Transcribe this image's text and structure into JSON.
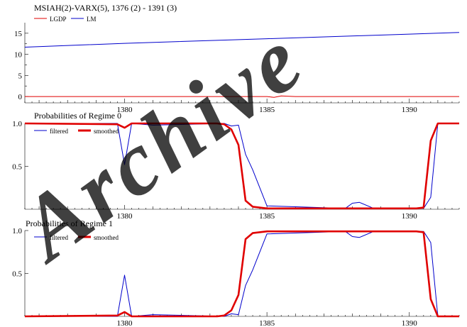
{
  "chart_data": [
    {
      "type": "line",
      "title": "MSIAH(2)-VARX(5), 1376 (2) - 1391 (3)",
      "xlabel": "",
      "ylabel": "",
      "xlim": [
        1376.5,
        1391.75
      ],
      "ylim": [
        -1.5,
        17.5
      ],
      "yticks": [
        0,
        5,
        10,
        15
      ],
      "xticks": [
        1380,
        1385,
        1390
      ],
      "legend_position": "top-left",
      "grid": false,
      "series": [
        {
          "name": "LGDP",
          "color": "#e00000",
          "x": [
            1376.5,
            1380,
            1385,
            1385.25,
            1385.5,
            1386,
            1391.75
          ],
          "y": [
            0,
            0,
            0,
            -0.2,
            0.15,
            0,
            0
          ]
        },
        {
          "name": "LM",
          "color": "#0000cc",
          "x": [
            1376.5,
            1380,
            1385,
            1388.25,
            1390,
            1391.75
          ],
          "y": [
            11.7,
            12.6,
            13.7,
            14.4,
            14.8,
            15.2
          ]
        }
      ]
    },
    {
      "type": "line",
      "title": "Probabilities of Regime 0",
      "xlabel": "",
      "ylabel": "",
      "xlim": [
        1376.5,
        1391.75
      ],
      "ylim": [
        0,
        1.0
      ],
      "yticks": [
        0.5,
        1.0
      ],
      "ytick_labels": [
        "0.5",
        "1.0"
      ],
      "xticks": [
        1380,
        1385,
        1390
      ],
      "legend_position": "top-left",
      "grid": false,
      "series": [
        {
          "name": "filtered",
          "color": "#0000cc",
          "x": [
            1376.5,
            1379.75,
            1380,
            1380.25,
            1381,
            1383.5,
            1383.75,
            1384,
            1384.25,
            1384.5,
            1385,
            1387.75,
            1388,
            1388.25,
            1388.75,
            1389.5,
            1390.25,
            1390.5,
            1390.75,
            1391,
            1391.75
          ],
          "y": [
            1,
            1,
            0.52,
            1,
            0.98,
            1,
            0.97,
            0.98,
            0.64,
            0.46,
            0.04,
            0.01,
            0.07,
            0.08,
            0.01,
            0.01,
            0.01,
            0.01,
            0.14,
            1,
            1
          ]
        },
        {
          "name": "smoothed",
          "color": "#e00000",
          "x": [
            1376.5,
            1379.75,
            1380,
            1380.25,
            1383.25,
            1383.5,
            1383.75,
            1384,
            1384.25,
            1384.5,
            1385,
            1390.25,
            1390.5,
            1390.75,
            1391,
            1391.75
          ],
          "y": [
            1,
            0.99,
            0.95,
            1,
            1,
            0.99,
            0.93,
            0.75,
            0.1,
            0.03,
            0.01,
            0.01,
            0.02,
            0.8,
            1,
            1
          ]
        }
      ]
    },
    {
      "type": "line",
      "title": "Probabilities of Regime 1",
      "xlabel": "",
      "ylabel": "",
      "xlim": [
        1376.5,
        1391.75
      ],
      "ylim": [
        0,
        1.0
      ],
      "yticks": [
        0.5,
        1.0
      ],
      "ytick_labels": [
        "0.5",
        "1.0"
      ],
      "xticks": [
        1380,
        1385,
        1390
      ],
      "legend_position": "top-left",
      "grid": false,
      "series": [
        {
          "name": "filtered",
          "color": "#0000cc",
          "x": [
            1376.5,
            1379.75,
            1380,
            1380.25,
            1381,
            1383.5,
            1383.75,
            1384,
            1384.25,
            1384.5,
            1385,
            1387.75,
            1388,
            1388.25,
            1388.75,
            1389.5,
            1390.25,
            1390.5,
            1390.75,
            1391,
            1391.75
          ],
          "y": [
            0,
            0,
            0.48,
            0,
            0.02,
            0,
            0.03,
            0.02,
            0.36,
            0.54,
            0.96,
            0.99,
            0.93,
            0.92,
            0.99,
            0.99,
            0.99,
            0.99,
            0.86,
            0,
            0
          ]
        },
        {
          "name": "smoothed",
          "color": "#e00000",
          "x": [
            1376.5,
            1379.75,
            1380,
            1380.25,
            1383.25,
            1383.5,
            1383.75,
            1384,
            1384.25,
            1384.5,
            1385,
            1390.25,
            1390.5,
            1390.75,
            1391,
            1391.75
          ],
          "y": [
            0,
            0.01,
            0.05,
            0,
            0,
            0.01,
            0.07,
            0.25,
            0.9,
            0.97,
            0.99,
            0.99,
            0.98,
            0.2,
            0,
            0
          ]
        }
      ]
    }
  ],
  "watermark": {
    "text": "Archive",
    "color": "#000000"
  }
}
